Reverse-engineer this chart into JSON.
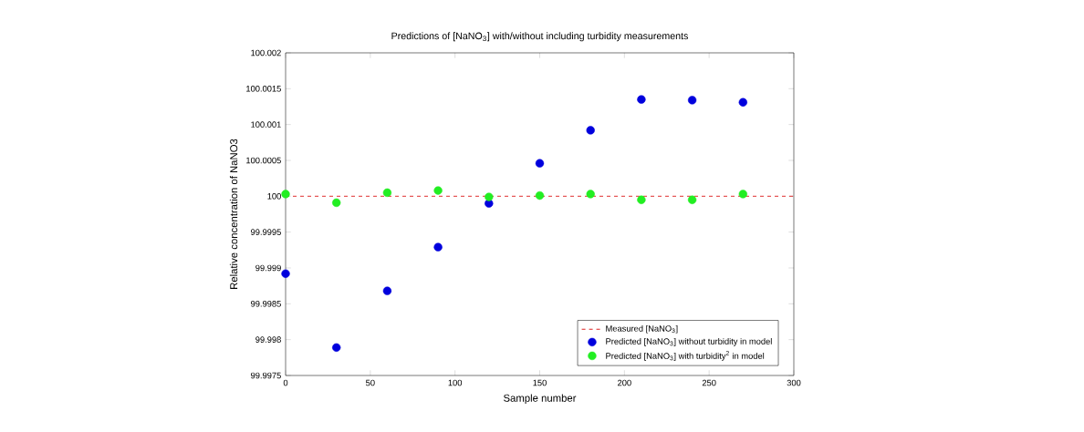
{
  "chart_data": {
    "type": "scatter",
    "title": "Predictions of [NaNO$_{3}$] with/without including turbidity measurements",
    "xlabel": "Sample number",
    "ylabel": "Relative concentration of NaNO3",
    "xlim": [
      0,
      300
    ],
    "xticks": [
      0,
      50,
      100,
      150,
      200,
      250,
      300
    ],
    "ylim": [
      99.9975,
      100.002
    ],
    "yticks": [
      99.9975,
      99.998,
      99.9985,
      99.999,
      99.9995,
      100,
      100.0005,
      100.001,
      100.0015,
      100.002
    ],
    "legend": "bottom right",
    "grid": false,
    "series": [
      {
        "name": "Measured [NaNO$_{3}$]",
        "type": "line",
        "marker": "none",
        "line_style": "dashed",
        "color": "#dd2222",
        "x": [
          0,
          300
        ],
        "values": [
          100,
          100
        ]
      },
      {
        "name": "Predicted [NaNO$_{3}$] without turbidity in model",
        "marker": "circle",
        "color": "#0000dd",
        "x": [
          0,
          30,
          60,
          90,
          120,
          150,
          180,
          210,
          240,
          270
        ],
        "values": [
          99.99892,
          99.99789,
          99.99868,
          99.99929,
          99.9999,
          100.00046,
          100.00092,
          100.00135,
          100.00134,
          100.00131
        ]
      },
      {
        "name": "Predicted [NaNO$_{3}$] with turbidity$^{2}$ in model",
        "marker": "circle",
        "color": "#22ee22",
        "x": [
          0,
          30,
          60,
          90,
          120,
          150,
          180,
          210,
          240,
          270
        ],
        "values": [
          100.00003,
          99.99991,
          100.00005,
          100.00008,
          99.99999,
          100.00001,
          100.00003,
          99.99995,
          99.99995,
          100.00003
        ]
      }
    ]
  }
}
